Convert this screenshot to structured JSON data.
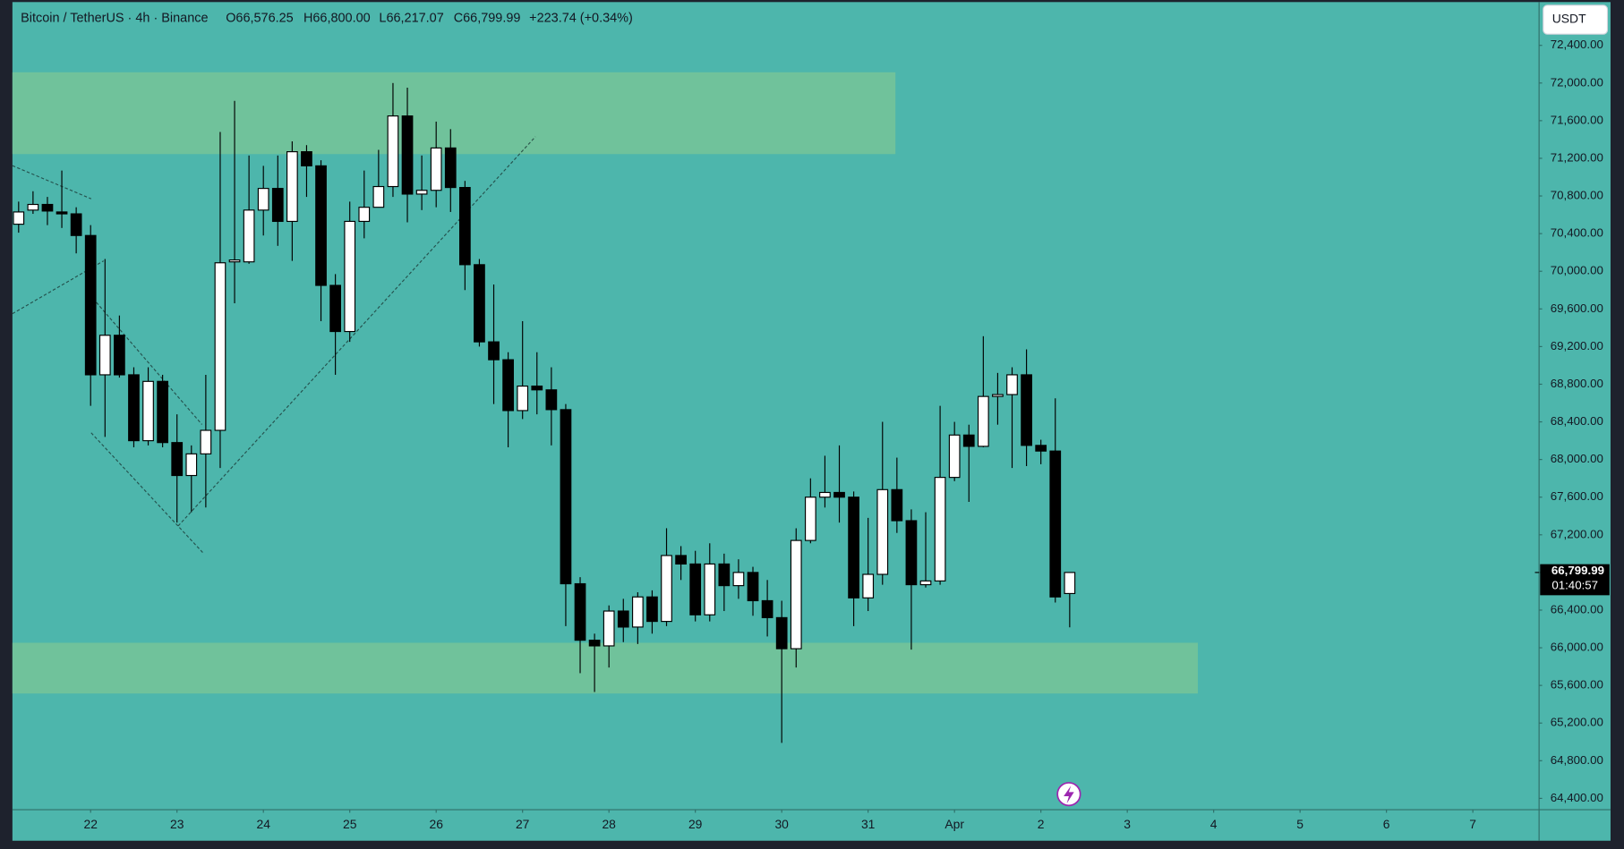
{
  "chart_data": {
    "type": "candlestick",
    "title": "Bitcoin / TetherUS · 4h · Binance",
    "header_values": [
      "O66,576.25",
      "H66,800.00",
      "L66,217.07",
      "C66,799.99",
      "+223.74 (+0.34%)"
    ],
    "currency_button": "USDT",
    "current_price": {
      "value": 66799.99,
      "label": "66,799.99"
    },
    "countdown": "01:40:57",
    "background": "#4db6ac",
    "up_color": "#ffffff",
    "down_color": "#000000",
    "zone_color": "#70c29b",
    "zones": [
      {
        "low": 71245,
        "high": 72114,
        "start": -0.43,
        "end": 60.9
      },
      {
        "low": 65514,
        "high": 66053,
        "start": -0.43,
        "end": 81.9
      }
    ],
    "open": [
      70500,
      70650,
      70710,
      70630,
      70610,
      70380,
      68900,
      69320,
      68900,
      68200,
      68830,
      68180,
      67830,
      68060,
      68310,
      70100,
      70100,
      70650,
      70880,
      70530,
      71270,
      71120,
      69850,
      69360,
      70530,
      70680,
      70900,
      71650,
      70820,
      70860,
      71310,
      70890,
      70070,
      69250,
      69060,
      68520,
      68780,
      68740,
      68530,
      66680,
      66080,
      66020,
      66390,
      66220,
      66540,
      66280,
      66980,
      66890,
      66350,
      66890,
      66660,
      66800,
      66500,
      66320,
      65990,
      67140,
      67600,
      67650,
      67600,
      66530,
      66780,
      67680,
      67350,
      66670,
      66710,
      67810,
      68260,
      68140,
      68670,
      68690,
      68900,
      68150,
      68090,
      66576.25
    ],
    "high": [
      70740,
      70850,
      70790,
      71070,
      70680,
      70490,
      70130,
      69530,
      68980,
      68980,
      68900,
      68480,
      68150,
      68900,
      71480,
      71810,
      71230,
      71120,
      71230,
      71380,
      71340,
      71180,
      69970,
      70740,
      71070,
      71290,
      72000,
      71950,
      71230,
      71590,
      71510,
      70960,
      70130,
      69860,
      69140,
      69470,
      69140,
      68980,
      68590,
      66750,
      66150,
      66450,
      66520,
      66590,
      66610,
      67270,
      67080,
      67030,
      67110,
      67000,
      66940,
      66860,
      66720,
      66500,
      67270,
      67800,
      68040,
      68150,
      67660,
      67380,
      68400,
      68020,
      67470,
      67440,
      68570,
      68400,
      68370,
      69310,
      68920,
      68980,
      69170,
      68210,
      68650,
      66800
    ],
    "low": [
      70410,
      70610,
      70490,
      70460,
      70190,
      68570,
      68240,
      68870,
      68130,
      68150,
      68130,
      67330,
      67440,
      67490,
      67910,
      69660,
      70080,
      70380,
      70270,
      70110,
      70790,
      69470,
      68900,
      69250,
      70350,
      70680,
      70790,
      70520,
      70650,
      70680,
      70630,
      69800,
      69200,
      68590,
      68130,
      68430,
      68480,
      68150,
      66230,
      65730,
      65530,
      65790,
      66060,
      66040,
      66150,
      66230,
      66720,
      66280,
      66280,
      66390,
      66520,
      66340,
      66120,
      64990,
      65790,
      67110,
      67490,
      67330,
      66230,
      66390,
      66670,
      67220,
      65980,
      66640,
      66670,
      67770,
      67550,
      68130,
      68370,
      67910,
      67930,
      67950,
      66480,
      66217.07
    ],
    "close": [
      70630,
      70710,
      70640,
      70610,
      70380,
      68900,
      69320,
      68900,
      68200,
      68830,
      68180,
      67830,
      68060,
      68310,
      70090,
      70120,
      70650,
      70880,
      70530,
      71270,
      71120,
      69850,
      69360,
      70530,
      70680,
      70900,
      71650,
      70820,
      70860,
      71310,
      70890,
      70070,
      69250,
      69060,
      68520,
      68780,
      68740,
      68530,
      66680,
      66080,
      66020,
      66390,
      66220,
      66540,
      66280,
      66980,
      66890,
      66350,
      66890,
      66660,
      66800,
      66500,
      66320,
      65990,
      67140,
      67600,
      67650,
      67600,
      66530,
      66780,
      67680,
      67350,
      66670,
      66710,
      67810,
      68260,
      68140,
      68670,
      68690,
      68900,
      68150,
      68090,
      66540,
      66799.99
    ],
    "xlim": [
      -0.43,
      105.6
    ],
    "xticks": [
      {
        "value": 5,
        "label": "22"
      },
      {
        "value": 11,
        "label": "23"
      },
      {
        "value": 17,
        "label": "24"
      },
      {
        "value": 23,
        "label": "25"
      },
      {
        "value": 29,
        "label": "26"
      },
      {
        "value": 35,
        "label": "27"
      },
      {
        "value": 41,
        "label": "28"
      },
      {
        "value": 47,
        "label": "29"
      },
      {
        "value": 53,
        "label": "30"
      },
      {
        "value": 59,
        "label": "31"
      },
      {
        "value": 65,
        "label": "Apr"
      },
      {
        "value": 71,
        "label": "2"
      },
      {
        "value": 77,
        "label": "3"
      },
      {
        "value": 83,
        "label": "4"
      },
      {
        "value": 89,
        "label": "5"
      },
      {
        "value": 95,
        "label": "6"
      },
      {
        "value": 101,
        "label": "7"
      }
    ],
    "ylim": [
      64280,
      72860
    ],
    "yticks": [
      {
        "value": 64400,
        "label": "64,400.00"
      },
      {
        "value": 64800,
        "label": "64,800.00"
      },
      {
        "value": 65200,
        "label": "65,200.00"
      },
      {
        "value": 65600,
        "label": "65,600.00"
      },
      {
        "value": 66000,
        "label": "66,000.00"
      },
      {
        "value": 66400,
        "label": "66,400.00"
      },
      {
        "value": 66800,
        "label": "66,800.00"
      },
      {
        "value": 67200,
        "label": "67,200.00"
      },
      {
        "value": 67600,
        "label": "67,600.00"
      },
      {
        "value": 68000,
        "label": "68,000.00"
      },
      {
        "value": 68400,
        "label": "68,400.00"
      },
      {
        "value": 68800,
        "label": "68,800.00"
      },
      {
        "value": 69200,
        "label": "69,200.00"
      },
      {
        "value": 69600,
        "label": "69,600.00"
      },
      {
        "value": 70000,
        "label": "70,000.00"
      },
      {
        "value": 70400,
        "label": "70,400.00"
      },
      {
        "value": 70800,
        "label": "70,800.00"
      },
      {
        "value": 71200,
        "label": "71,200.00"
      },
      {
        "value": 71600,
        "label": "71,600.00"
      },
      {
        "value": 72000,
        "label": "72,000.00"
      },
      {
        "value": 72400,
        "label": "72,400.00"
      }
    ]
  }
}
